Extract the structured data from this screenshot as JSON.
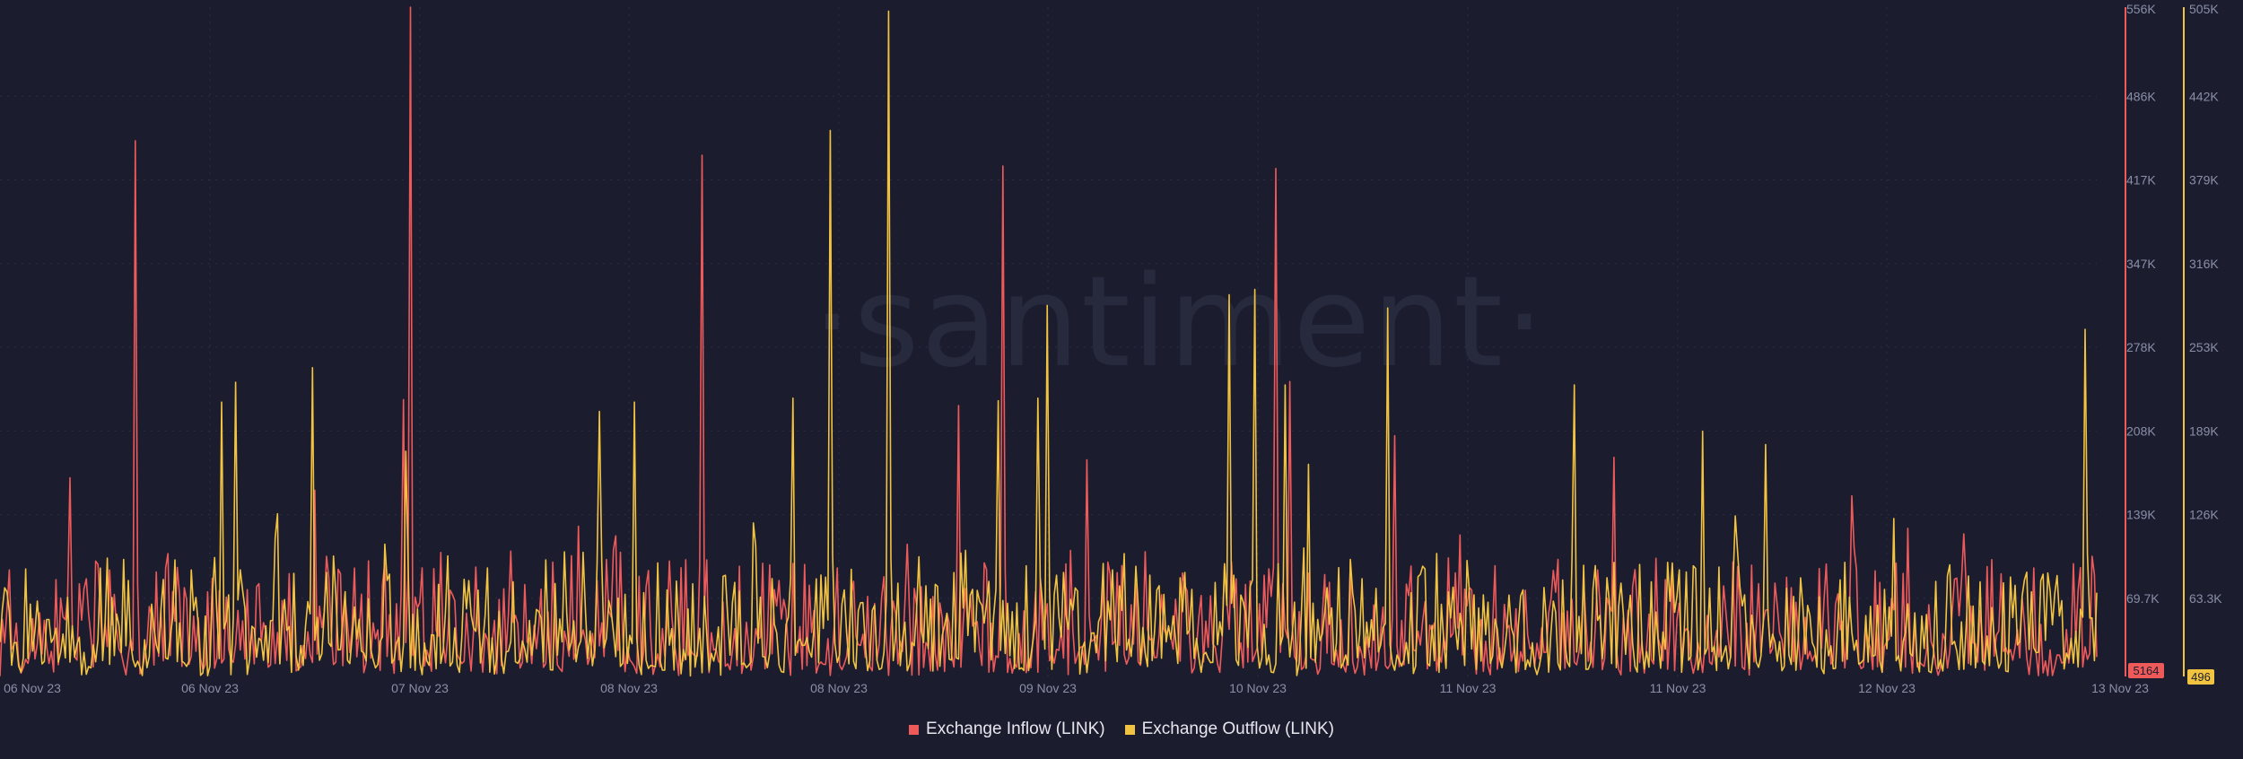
{
  "watermark": "·santiment·",
  "colors": {
    "background": "#1b1d2f",
    "inflow": "#ee5a5a",
    "outflow": "#f2c340",
    "axis_text": "#8a8ea6",
    "grid": "#2b2f45"
  },
  "chart_data": {
    "type": "line",
    "x_tick_labels": [
      "06 Nov 23",
      "06 Nov 23",
      "07 Nov 23",
      "08 Nov 23",
      "08 Nov 23",
      "09 Nov 23",
      "10 Nov 23",
      "11 Nov 23",
      "11 Nov 23",
      "12 Nov 23",
      "13 Nov 23"
    ],
    "y_left": {
      "ticks": [
        "556K",
        "486K",
        "417K",
        "347K",
        "278K",
        "208K",
        "139K",
        "69.7K"
      ],
      "range": [
        0,
        556000
      ],
      "current_value": "5164"
    },
    "y_right": {
      "ticks": [
        "505K",
        "442K",
        "379K",
        "316K",
        "253K",
        "189K",
        "126K",
        "63.3K"
      ],
      "range": [
        0,
        505000
      ],
      "current_value": "496"
    },
    "grid": true,
    "legend_position": "bottom-center",
    "series": [
      {
        "name": "Exchange Inflow (LINK)",
        "axis": "left",
        "peaks": [
          {
            "x": 0.033,
            "value": 165000
          },
          {
            "x": 0.065,
            "value": 445000
          },
          {
            "x": 0.196,
            "value": 556000
          },
          {
            "x": 0.192,
            "value": 230000
          },
          {
            "x": 0.335,
            "value": 433000
          },
          {
            "x": 0.457,
            "value": 225000
          },
          {
            "x": 0.478,
            "value": 424000
          },
          {
            "x": 0.518,
            "value": 180000
          },
          {
            "x": 0.608,
            "value": 422000
          },
          {
            "x": 0.615,
            "value": 245000
          },
          {
            "x": 0.665,
            "value": 200000
          },
          {
            "x": 0.77,
            "value": 182000
          },
          {
            "x": 0.883,
            "value": 150000
          }
        ]
      },
      {
        "name": "Exchange Outflow (LINK)",
        "axis": "right",
        "peaks": [
          {
            "x": 0.106,
            "value": 207000
          },
          {
            "x": 0.112,
            "value": 222000
          },
          {
            "x": 0.149,
            "value": 233000
          },
          {
            "x": 0.193,
            "value": 170000
          },
          {
            "x": 0.286,
            "value": 200000
          },
          {
            "x": 0.303,
            "value": 207000
          },
          {
            "x": 0.378,
            "value": 210000
          },
          {
            "x": 0.396,
            "value": 412000
          },
          {
            "x": 0.424,
            "value": 502000
          },
          {
            "x": 0.476,
            "value": 208000
          },
          {
            "x": 0.495,
            "value": 210000
          },
          {
            "x": 0.499,
            "value": 280000
          },
          {
            "x": 0.586,
            "value": 288000
          },
          {
            "x": 0.598,
            "value": 292000
          },
          {
            "x": 0.613,
            "value": 220000
          },
          {
            "x": 0.624,
            "value": 160000
          },
          {
            "x": 0.662,
            "value": 278000
          },
          {
            "x": 0.751,
            "value": 220000
          },
          {
            "x": 0.812,
            "value": 185000
          },
          {
            "x": 0.842,
            "value": 175000
          },
          {
            "x": 0.994,
            "value": 262000
          }
        ]
      }
    ]
  },
  "legend": {
    "inflow_label": "Exchange Inflow (LINK)",
    "outflow_label": "Exchange Outflow (LINK)"
  }
}
